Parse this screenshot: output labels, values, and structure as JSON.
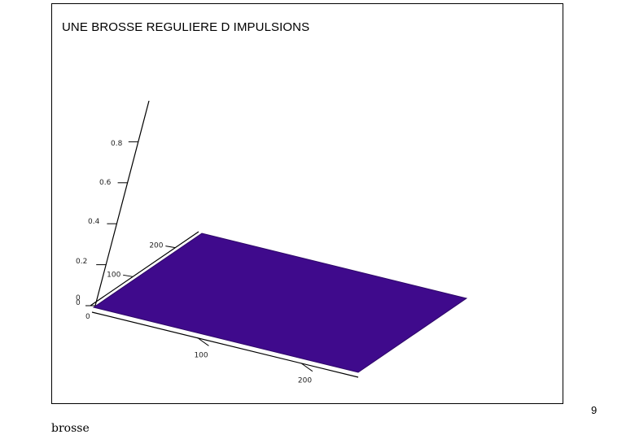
{
  "title": "UNE BROSSE REGULIERE D IMPULSIONS",
  "caption": "brosse",
  "page_number": "9",
  "colors": {
    "base_plane": "#3f0a8c",
    "spike_low": "#5a0a9a",
    "spike_high": "#ff1a1a",
    "axis": "#000000"
  },
  "chart_data": {
    "type": "surface3d",
    "title": "UNE BROSSE REGULIERE D IMPULSIONS",
    "xlabel": "",
    "ylabel": "",
    "zlabel": "",
    "x_range": [
      0,
      255
    ],
    "y_range": [
      0,
      255
    ],
    "z_range": [
      0,
      1
    ],
    "x_ticks": [
      "0",
      "100",
      "200"
    ],
    "y_ticks": [
      "0",
      "100",
      "200"
    ],
    "z_ticks": [
      "0",
      "0.2",
      "0.4",
      "0.6",
      "0.8"
    ],
    "grid": false,
    "spike_height": 1,
    "spike_spacing_x": 8,
    "spike_spacing_y": 40,
    "base_value": 0
  }
}
